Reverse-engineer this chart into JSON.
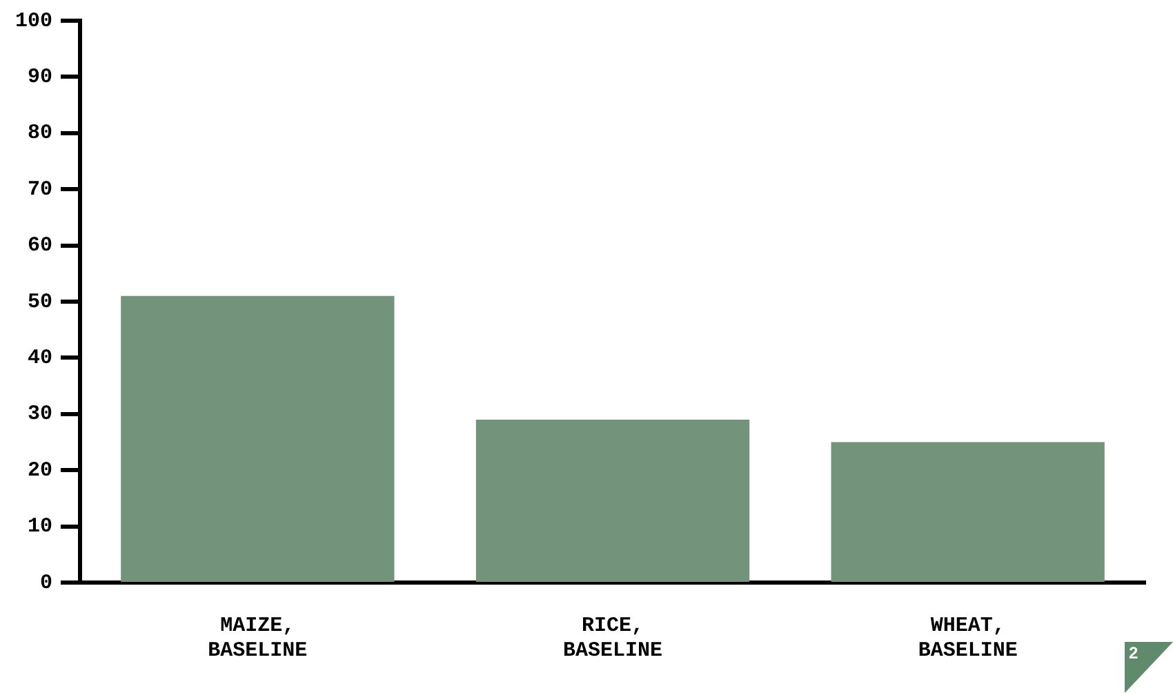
{
  "chart_data": {
    "type": "bar",
    "categories": [
      "MAIZE, BASELINE",
      "RICE, BASELINE",
      "WHEAT, BASELINE"
    ],
    "values": [
      51,
      29,
      25
    ],
    "color": "#73937a",
    "ylim": [
      0,
      100
    ],
    "yticks": [
      0,
      10,
      20,
      30,
      40,
      50,
      60,
      70,
      80,
      90,
      100
    ],
    "grid": false,
    "legend": false,
    "annotations": [
      "2"
    ]
  }
}
